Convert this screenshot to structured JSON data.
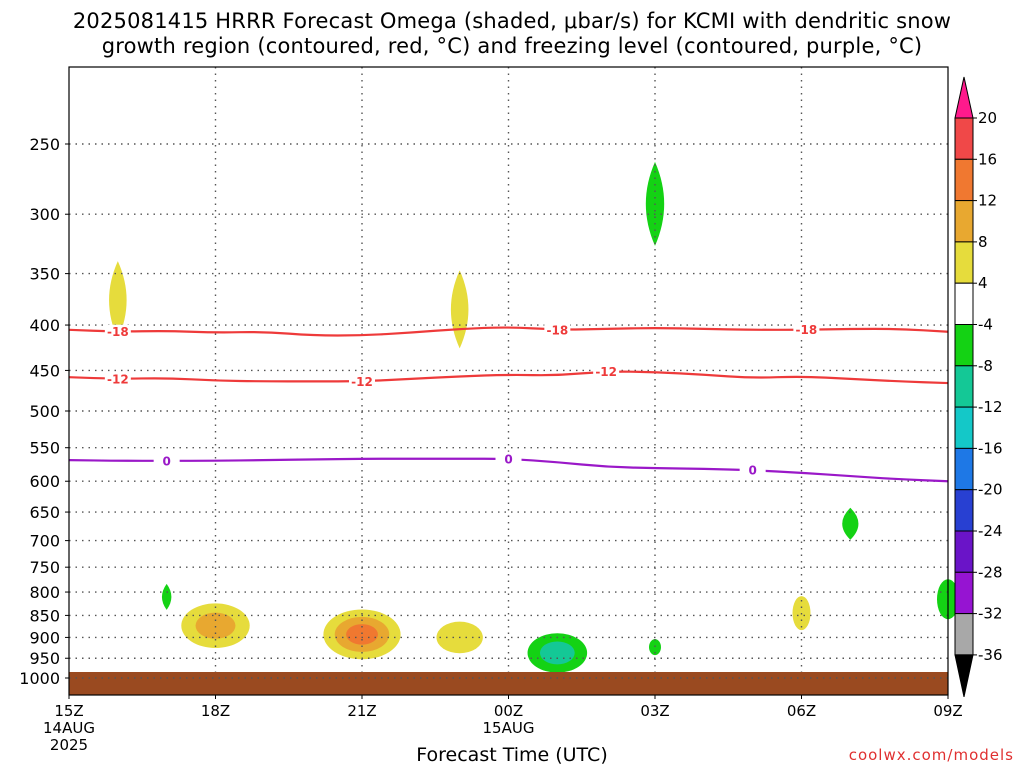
{
  "title": {
    "line1": "2025081415 HRRR Forecast Omega (shaded, μbar/s) for KCMI with dendritic snow",
    "line2": "growth region (contoured, red, °C) and freezing level (contoured, purple, °C)"
  },
  "credit": "coolwx.com/models",
  "chart_data": {
    "type": "contour",
    "xlabel": "Forecast Time (UTC)",
    "x_ticks": [
      {
        "hour": 0,
        "label": "15Z",
        "sub1": "14AUG",
        "sub2": "2025"
      },
      {
        "hour": 3,
        "label": "18Z",
        "sub1": "",
        "sub2": ""
      },
      {
        "hour": 6,
        "label": "21Z",
        "sub1": "",
        "sub2": ""
      },
      {
        "hour": 9,
        "label": "00Z",
        "sub1": "15AUG",
        "sub2": ""
      },
      {
        "hour": 12,
        "label": "03Z",
        "sub1": "",
        "sub2": ""
      },
      {
        "hour": 15,
        "label": "06Z",
        "sub1": "",
        "sub2": ""
      },
      {
        "hour": 18,
        "label": "09Z",
        "sub1": "",
        "sub2": ""
      }
    ],
    "xlim": [
      0,
      18
    ],
    "ylabel": "",
    "y_ticks": [
      250,
      300,
      350,
      400,
      450,
      500,
      550,
      600,
      650,
      700,
      750,
      800,
      850,
      900,
      950,
      1000
    ],
    "ylim_hPa": [
      200,
      1025
    ],
    "y_scale": "log-pressure (inverted)",
    "grid": true,
    "surface_hPa": 985,
    "contours": [
      {
        "label": "-18",
        "color": "#ee3a3a",
        "label_at_hours": [
          1,
          10,
          15.1
        ],
        "points": [
          [
            0,
            405
          ],
          [
            1,
            407
          ],
          [
            2,
            406
          ],
          [
            3,
            408
          ],
          [
            4,
            407
          ],
          [
            5,
            411
          ],
          [
            6,
            411
          ],
          [
            7,
            408
          ],
          [
            8,
            404
          ],
          [
            9,
            402
          ],
          [
            10,
            405
          ],
          [
            11,
            404
          ],
          [
            12,
            403
          ],
          [
            13,
            404
          ],
          [
            14,
            405
          ],
          [
            15,
            405
          ],
          [
            16,
            404
          ],
          [
            17,
            404
          ],
          [
            18,
            407
          ]
        ]
      },
      {
        "label": "-12",
        "color": "#ee3a3a",
        "label_at_hours": [
          1,
          6,
          11
        ],
        "points": [
          [
            0,
            458
          ],
          [
            1,
            460
          ],
          [
            2,
            459
          ],
          [
            3,
            462
          ],
          [
            4,
            463
          ],
          [
            5,
            463
          ],
          [
            6,
            463
          ],
          [
            7,
            460
          ],
          [
            8,
            457
          ],
          [
            9,
            455
          ],
          [
            10,
            456
          ],
          [
            11,
            451
          ],
          [
            12,
            452
          ],
          [
            13,
            455
          ],
          [
            14,
            459
          ],
          [
            15,
            457
          ],
          [
            16,
            460
          ],
          [
            17,
            463
          ],
          [
            18,
            465
          ]
        ]
      },
      {
        "label": "0",
        "color": "#9a18c8",
        "label_at_hours": [
          2,
          9,
          14
        ],
        "points": [
          [
            0,
            568
          ],
          [
            1,
            569
          ],
          [
            2,
            569
          ],
          [
            3,
            569
          ],
          [
            4,
            568
          ],
          [
            5,
            567
          ],
          [
            6,
            566
          ],
          [
            7,
            566
          ],
          [
            8,
            566
          ],
          [
            9,
            566
          ],
          [
            10,
            571
          ],
          [
            11,
            578
          ],
          [
            12,
            580
          ],
          [
            13,
            581
          ],
          [
            14,
            583
          ],
          [
            15,
            587
          ],
          [
            16,
            592
          ],
          [
            17,
            597
          ],
          [
            18,
            600
          ]
        ]
      }
    ],
    "shaded_features": [
      {
        "hour": 1.0,
        "hPa": 375,
        "omega": 5,
        "label": "yellow"
      },
      {
        "hour": 8.0,
        "hPa": 384,
        "omega": 5,
        "label": "yellow"
      },
      {
        "hour": 12.0,
        "hPa": 292,
        "omega": -6,
        "label": "green"
      },
      {
        "hour": 2.0,
        "hPa": 810,
        "omega": -5,
        "label": "green"
      },
      {
        "hour": 3.0,
        "hPa": 873,
        "omega": 11,
        "label": "yellow-orange"
      },
      {
        "hour": 6.0,
        "hPa": 893,
        "omega": 13,
        "label": "yellow-orange"
      },
      {
        "hour": 8.0,
        "hPa": 900,
        "omega": 6,
        "label": "yellow"
      },
      {
        "hour": 10.0,
        "hPa": 937,
        "omega": -9,
        "label": "green-teal"
      },
      {
        "hour": 12.0,
        "hPa": 923,
        "omega": -5,
        "label": "green"
      },
      {
        "hour": 15.0,
        "hPa": 845,
        "omega": 5,
        "label": "yellow"
      },
      {
        "hour": 16.0,
        "hPa": 670,
        "omega": -6,
        "label": "green"
      },
      {
        "hour": 18.0,
        "hPa": 815,
        "omega": -6,
        "label": "green"
      }
    ]
  },
  "colorbar": {
    "labels": [
      "20",
      "16",
      "12",
      "8",
      "4",
      "-4",
      "-8",
      "-12",
      "-16",
      "-20",
      "-24",
      "-28",
      "-32",
      "-36"
    ],
    "colors": [
      "#ff1a8c",
      "#f04848",
      "#f07830",
      "#e8a830",
      "#e6dc3c",
      "#ffffff",
      "#14d214",
      "#14c896",
      "#14c8c8",
      "#1e78e6",
      "#2840d2",
      "#6a14c8",
      "#9614d2",
      "#a8a8a8",
      "#000000"
    ]
  },
  "colors": {
    "surface": "#9a4a20",
    "grid": "#555555"
  }
}
